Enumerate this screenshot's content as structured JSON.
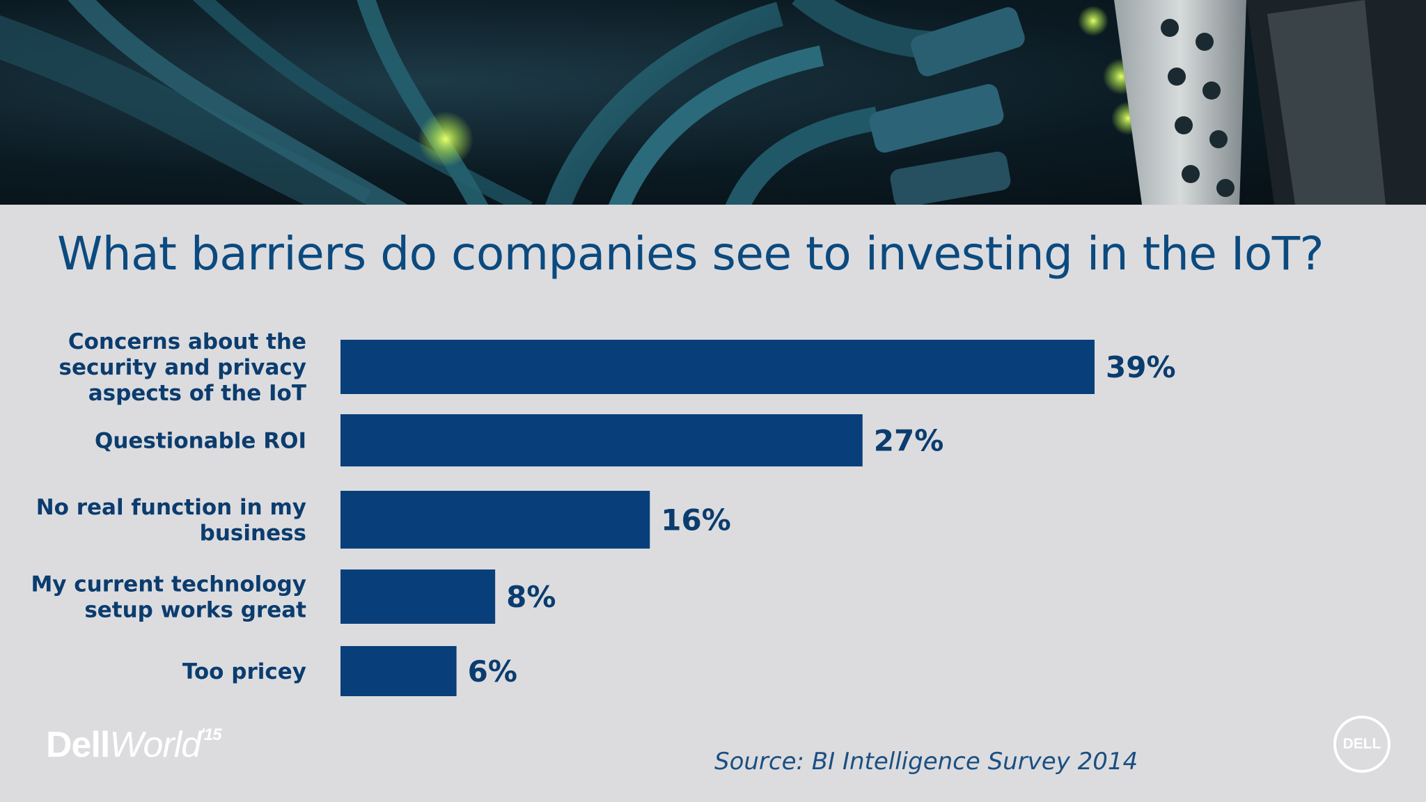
{
  "title": "What barriers do companies see to investing in the IoT?",
  "source": "Source: BI Intelligence Survey 2014",
  "event_logo": {
    "name": "Dell",
    "name2": "World",
    "sup": "'15"
  },
  "brand_logo": "DELL",
  "colors": {
    "bar": "#083f7a",
    "text": "#0b3c6e",
    "background": "#dcdcdf",
    "title": "#0b4a7f"
  },
  "chart_data": {
    "type": "bar",
    "orientation": "horizontal",
    "categories": [
      [
        "Concerns about the",
        "security and privacy",
        "aspects of the IoT"
      ],
      [
        "Questionable ROI"
      ],
      [
        "No real function in my",
        "business"
      ],
      [
        "My current technology",
        "setup works great"
      ],
      [
        "Too pricey"
      ]
    ],
    "values": [
      39,
      27,
      16,
      8,
      6
    ],
    "value_labels": [
      "39%",
      "27%",
      "16%",
      "8%",
      "6%"
    ],
    "unit": "%",
    "grid": false,
    "legend": "none"
  }
}
